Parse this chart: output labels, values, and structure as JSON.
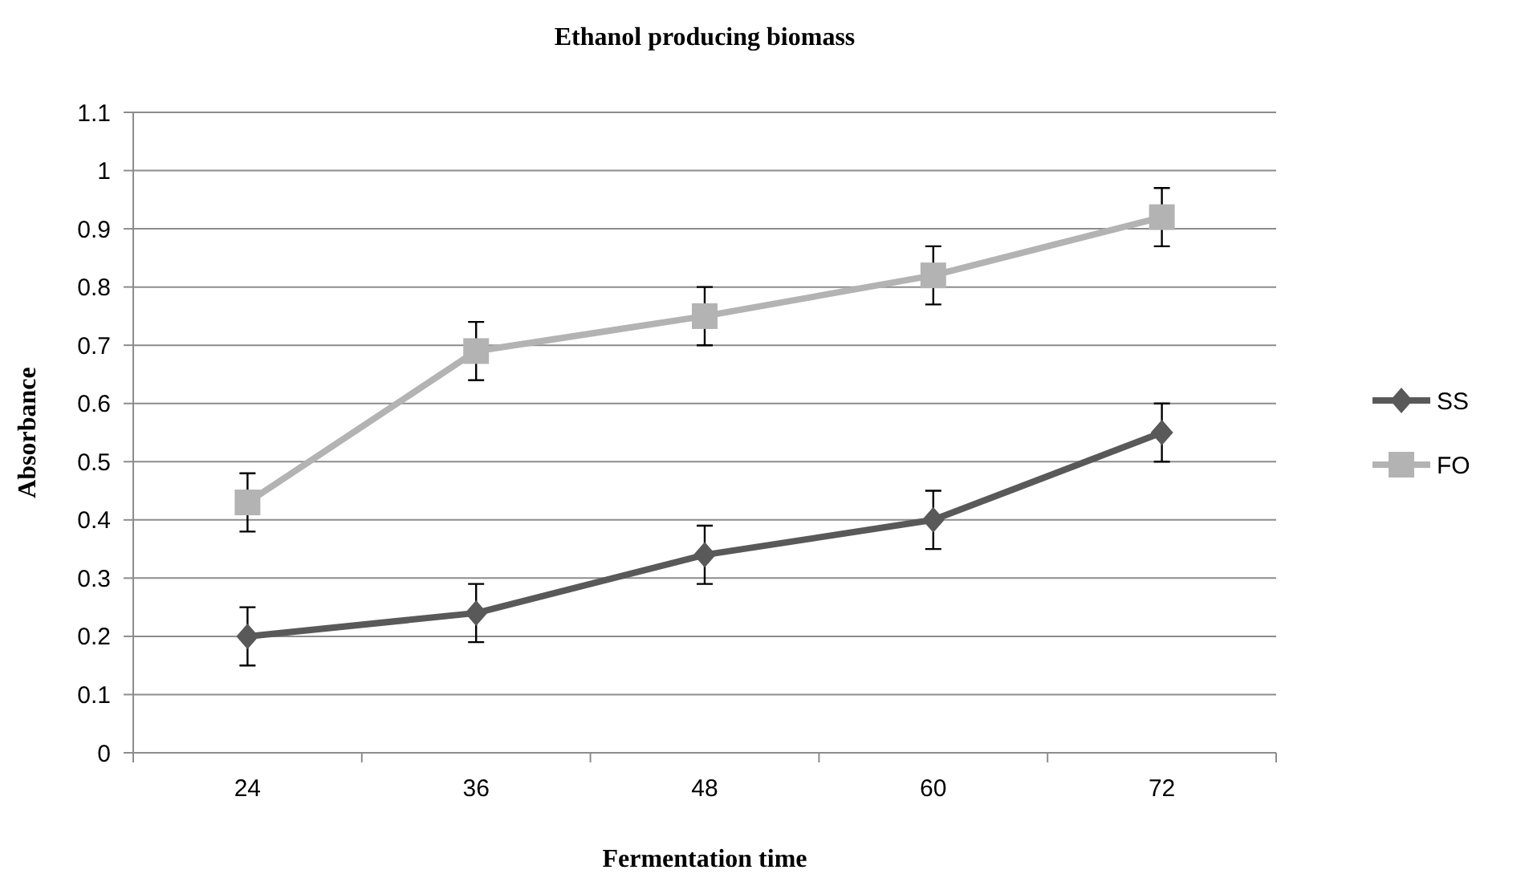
{
  "chart_data": {
    "type": "line",
    "title": "Ethanol producing biomass",
    "xlabel": "Fermentation time",
    "ylabel": "Absorbance",
    "categories": [
      "24",
      "36",
      "48",
      "60",
      "72"
    ],
    "series": [
      {
        "name": "SS",
        "color": "#595959",
        "marker": "diamond",
        "values": [
          0.2,
          0.24,
          0.34,
          0.4,
          0.55
        ],
        "errors": [
          0.05,
          0.05,
          0.05,
          0.05,
          0.05
        ]
      },
      {
        "name": "FO",
        "color": "#b3b3b3",
        "marker": "square",
        "values": [
          0.43,
          0.69,
          0.75,
          0.82,
          0.92
        ],
        "errors": [
          0.05,
          0.05,
          0.05,
          0.05,
          0.05
        ]
      }
    ],
    "ylim": [
      0,
      1.1
    ],
    "yticks": [
      0,
      0.1,
      0.2,
      0.3,
      0.4,
      0.5,
      0.6,
      0.7,
      0.8,
      0.9,
      1,
      1.1
    ],
    "grid": "y",
    "legend": "right",
    "line_style": "solid"
  }
}
